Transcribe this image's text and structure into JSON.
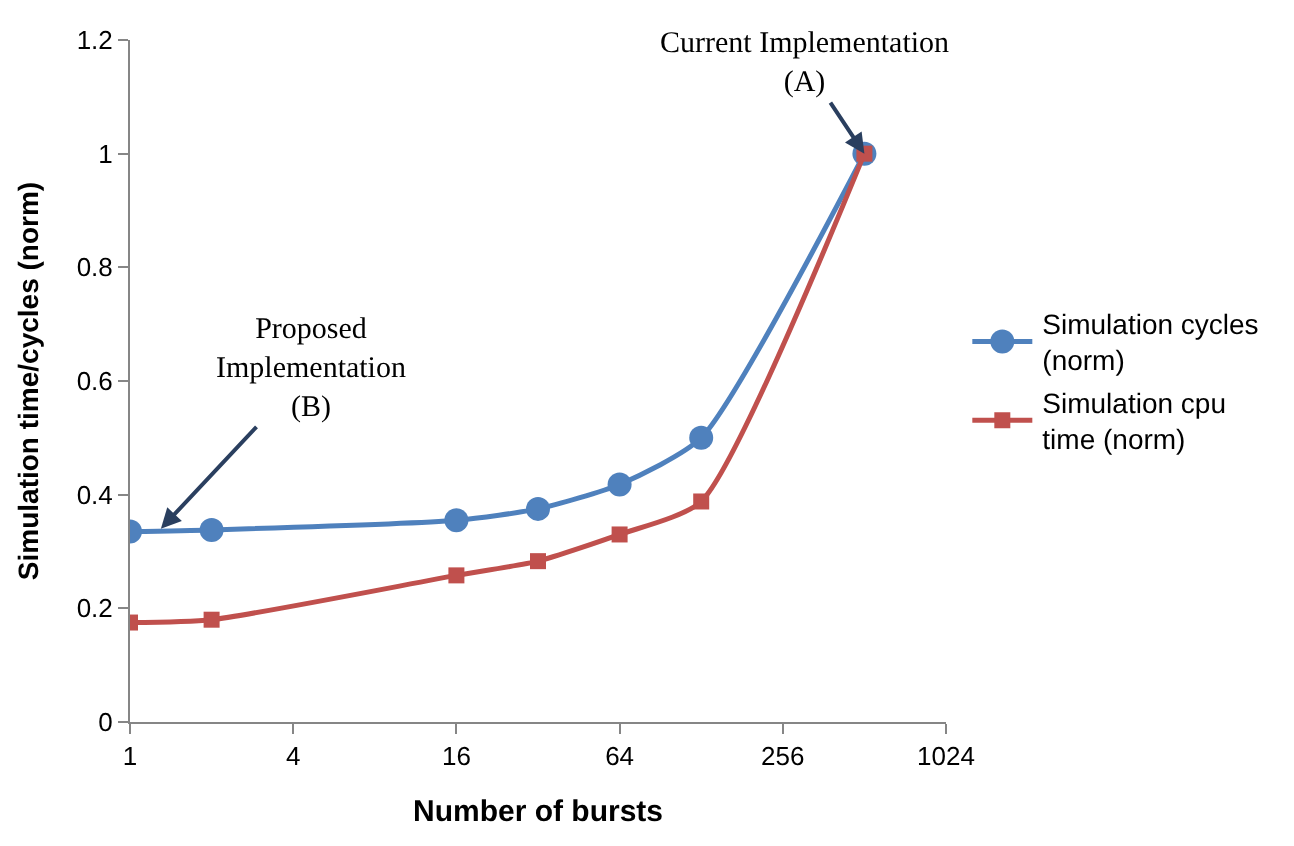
{
  "chart_data": {
    "type": "line",
    "xlabel": "Number of bursts",
    "ylabel": "Simulation time/cycles (norm)",
    "x": [
      1,
      2,
      16,
      32,
      64,
      128,
      512
    ],
    "series": [
      {
        "name": "Simulation cycles (norm)",
        "color": "#4f81bd",
        "marker": "circle",
        "values": [
          0.335,
          0.338,
          0.355,
          0.375,
          0.418,
          0.5,
          1.0
        ]
      },
      {
        "name": "Simulation cpu time (norm)",
        "color": "#c0504d",
        "marker": "square",
        "values": [
          0.175,
          0.18,
          0.258,
          0.283,
          0.33,
          0.388,
          1.0
        ]
      }
    ],
    "log": "x",
    "xlim": [
      1,
      1024
    ],
    "xticks": [
      1,
      4,
      16,
      64,
      256,
      1024
    ],
    "ylim": [
      0,
      1.2
    ],
    "yticks": [
      0,
      0.2,
      0.4,
      0.6,
      0.8,
      1,
      1.2
    ],
    "legend": "right",
    "annotations": [
      {
        "text": "Current Implementation\n(A)",
        "x": 512,
        "y": 1.0
      },
      {
        "text": "Proposed\nImplementation\n(B)",
        "x": 1.3,
        "y": 0.34
      }
    ]
  }
}
